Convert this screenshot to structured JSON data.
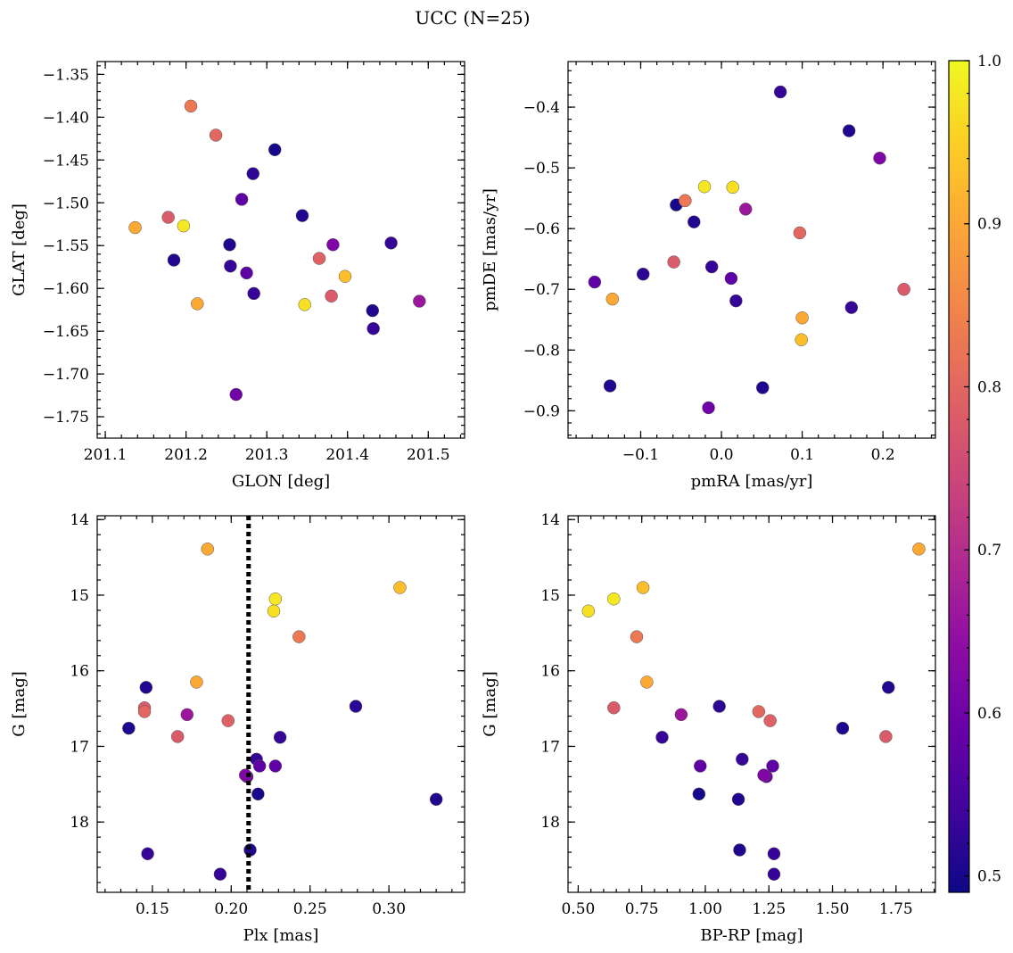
{
  "chart_data": {
    "type": "scatter",
    "title": "UCC (N=25)",
    "colorbar": {
      "range": [
        0.49,
        1.0
      ],
      "ticks": [
        "0.5",
        "0.6",
        "0.7",
        "0.8",
        "0.9",
        "1.0"
      ],
      "colormap": "plasma"
    },
    "points": [
      {
        "glon": 201.137,
        "glat": -1.529,
        "pmra": -0.135,
        "pmde": -0.716,
        "plx": 0.185,
        "bprp": 1.84,
        "g": 14.39,
        "prob": 0.9
      },
      {
        "glon": 201.178,
        "glat": -1.517,
        "pmra": -0.059,
        "pmde": -0.655,
        "plx": 0.145,
        "bprp": 0.64,
        "g": 16.49,
        "prob": 0.78
      },
      {
        "glon": 201.185,
        "glat": -1.567,
        "pmra": -0.138,
        "pmde": -0.859,
        "plx": 0.135,
        "bprp": 1.54,
        "g": 16.76,
        "prob": 0.51
      },
      {
        "glon": 201.197,
        "glat": -1.527,
        "pmra": -0.021,
        "pmde": -0.531,
        "plx": 0.228,
        "bprp": 0.64,
        "g": 15.05,
        "prob": 0.98
      },
      {
        "glon": 201.206,
        "glat": -1.387,
        "pmra": -0.045,
        "pmde": -0.554,
        "plx": 0.243,
        "bprp": 0.73,
        "g": 15.55,
        "prob": 0.83
      },
      {
        "glon": 201.214,
        "glat": -1.618,
        "pmra": 0.1,
        "pmde": -0.747,
        "plx": 0.178,
        "bprp": 0.77,
        "g": 16.15,
        "prob": 0.9
      },
      {
        "glon": 201.237,
        "glat": -1.421,
        "pmra": 0.097,
        "pmde": -0.607,
        "plx": 0.145,
        "bprp": 1.21,
        "g": 16.54,
        "prob": 0.8
      },
      {
        "glon": 201.254,
        "glat": -1.549,
        "pmra": -0.034,
        "pmde": -0.589,
        "plx": 0.146,
        "bprp": 1.72,
        "g": 16.22,
        "prob": 0.51
      },
      {
        "glon": 201.255,
        "glat": -1.574,
        "pmra": -0.012,
        "pmde": -0.663,
        "plx": 0.231,
        "bprp": 0.83,
        "g": 16.88,
        "prob": 0.53
      },
      {
        "glon": 201.262,
        "glat": -1.724,
        "pmra": -0.016,
        "pmde": -0.895,
        "plx": 0.21,
        "bprp": 1.24,
        "g": 17.4,
        "prob": 0.6
      },
      {
        "glon": 201.269,
        "glat": -1.496,
        "pmra": -0.157,
        "pmde": -0.688,
        "plx": 0.228,
        "bprp": 0.98,
        "g": 17.26,
        "prob": 0.58
      },
      {
        "glon": 201.275,
        "glat": -1.582,
        "pmra": 0.012,
        "pmde": -0.682,
        "plx": 0.218,
        "bprp": 1.265,
        "g": 17.26,
        "prob": 0.58
      },
      {
        "glon": 201.283,
        "glat": -1.466,
        "pmra": -0.097,
        "pmde": -0.675,
        "plx": 0.279,
        "bprp": 1.055,
        "g": 16.47,
        "prob": 0.52
      },
      {
        "glon": 201.284,
        "glat": -1.606,
        "pmra": 0.018,
        "pmde": -0.719,
        "plx": 0.216,
        "bprp": 1.145,
        "g": 17.17,
        "prob": 0.53
      },
      {
        "glon": 201.31,
        "glat": -1.438,
        "pmra": -0.056,
        "pmde": -0.561,
        "plx": 0.217,
        "bprp": 0.975,
        "g": 17.63,
        "prob": 0.5
      },
      {
        "glon": 201.344,
        "glat": -1.515,
        "pmra": 0.158,
        "pmde": -0.439,
        "plx": 0.33,
        "bprp": 1.13,
        "g": 17.7,
        "prob": 0.51
      },
      {
        "glon": 201.347,
        "glat": -1.619,
        "pmra": 0.014,
        "pmde": -0.532,
        "plx": 0.227,
        "bprp": 0.54,
        "g": 15.21,
        "prob": 0.97
      },
      {
        "glon": 201.365,
        "glat": -1.565,
        "pmra": -0.045,
        "pmde": -0.554,
        "plx": 0.198,
        "bprp": 1.255,
        "g": 16.66,
        "prob": 0.79
      },
      {
        "glon": 201.38,
        "glat": -1.609,
        "pmra": 0.226,
        "pmde": -0.7,
        "plx": 0.166,
        "bprp": 1.71,
        "g": 16.87,
        "prob": 0.78
      },
      {
        "glon": 201.382,
        "glat": -1.549,
        "pmra": 0.196,
        "pmde": -0.484,
        "plx": 0.209,
        "bprp": 1.23,
        "g": 17.38,
        "prob": 0.62
      },
      {
        "glon": 201.397,
        "glat": -1.586,
        "pmra": 0.099,
        "pmde": -0.783,
        "plx": 0.307,
        "bprp": 0.755,
        "g": 14.9,
        "prob": 0.93
      },
      {
        "glon": 201.431,
        "glat": -1.626,
        "pmra": 0.051,
        "pmde": -0.862,
        "plx": 0.212,
        "bprp": 1.135,
        "g": 18.37,
        "prob": 0.51
      },
      {
        "glon": 201.432,
        "glat": -1.647,
        "pmra": 0.161,
        "pmde": -0.73,
        "plx": 0.147,
        "bprp": 1.27,
        "g": 18.42,
        "prob": 0.53
      },
      {
        "glon": 201.454,
        "glat": -1.547,
        "pmra": 0.073,
        "pmde": -0.375,
        "plx": 0.193,
        "bprp": 1.27,
        "g": 18.69,
        "prob": 0.53
      },
      {
        "glon": 201.489,
        "glat": -1.615,
        "pmra": 0.03,
        "pmde": -0.568,
        "plx": 0.172,
        "bprp": 0.905,
        "g": 16.58,
        "prob": 0.66
      }
    ],
    "panels": [
      {
        "xkey": "glon",
        "ykey": "glat",
        "xlabel": "GLON [deg]",
        "ylabel": "GLAT [deg]",
        "xlim": [
          201.09,
          201.545
        ],
        "ylim": [
          -1.775,
          -1.335
        ],
        "yinvert": false,
        "xticks": [
          201.1,
          201.2,
          201.3,
          201.4,
          201.5
        ],
        "xtick_labels": [
          "201.1",
          "201.2",
          "201.3",
          "201.4",
          "201.5"
        ],
        "xminor": 0.02,
        "yticks": [
          -1.35,
          -1.4,
          -1.45,
          -1.5,
          -1.55,
          -1.6,
          -1.65,
          -1.7,
          -1.75
        ],
        "ytick_labels": [
          "−1.35",
          "−1.40",
          "−1.45",
          "−1.50",
          "−1.55",
          "−1.60",
          "−1.65",
          "−1.70",
          "−1.75"
        ],
        "yminor": 0.01
      },
      {
        "xkey": "pmra",
        "ykey": "pmde",
        "xlabel": "pmRA [mas/yr]",
        "ylabel": "pmDE [mas/yr]",
        "xlim": [
          -0.19,
          0.265
        ],
        "ylim": [
          -0.945,
          -0.325
        ],
        "yinvert": false,
        "xticks": [
          -0.1,
          0.0,
          0.1,
          0.2
        ],
        "xtick_labels": [
          "−0.1",
          "0.0",
          "0.1",
          "0.2"
        ],
        "xminor": 0.02,
        "yticks": [
          -0.4,
          -0.5,
          -0.6,
          -0.7,
          -0.8,
          -0.9
        ],
        "ytick_labels": [
          "−0.4",
          "−0.5",
          "−0.6",
          "−0.7",
          "−0.8",
          "−0.9"
        ],
        "yminor": 0.02
      },
      {
        "xkey": "plx",
        "ykey": "g",
        "xlabel": "Plx [mas]",
        "ylabel": "G [mag]",
        "xlim": [
          0.115,
          0.348
        ],
        "ylim": [
          18.93,
          13.95
        ],
        "yinvert": true,
        "xticks": [
          0.15,
          0.2,
          0.25,
          0.3
        ],
        "xtick_labels": [
          "0.15",
          "0.20",
          "0.25",
          "0.30"
        ],
        "xminor": 0.01,
        "yticks": [
          14,
          15,
          16,
          17,
          18
        ],
        "ytick_labels": [
          "14",
          "15",
          "16",
          "17",
          "18"
        ],
        "yminor": 0.2,
        "vline": 0.211
      },
      {
        "xkey": "bprp",
        "ykey": "g",
        "xlabel": "BP-RP [mag]",
        "ylabel": "G [mag]",
        "xlim": [
          0.46,
          1.905
        ],
        "ylim": [
          18.93,
          13.95
        ],
        "yinvert": true,
        "xticks": [
          0.5,
          0.75,
          1.0,
          1.25,
          1.5,
          1.75
        ],
        "xtick_labels": [
          "0.50",
          "0.75",
          "1.00",
          "1.25",
          "1.50",
          "1.75"
        ],
        "xminor": 0.05,
        "yticks": [
          14,
          15,
          16,
          17,
          18
        ],
        "ytick_labels": [
          "14",
          "15",
          "16",
          "17",
          "18"
        ],
        "yminor": 0.2
      }
    ]
  }
}
